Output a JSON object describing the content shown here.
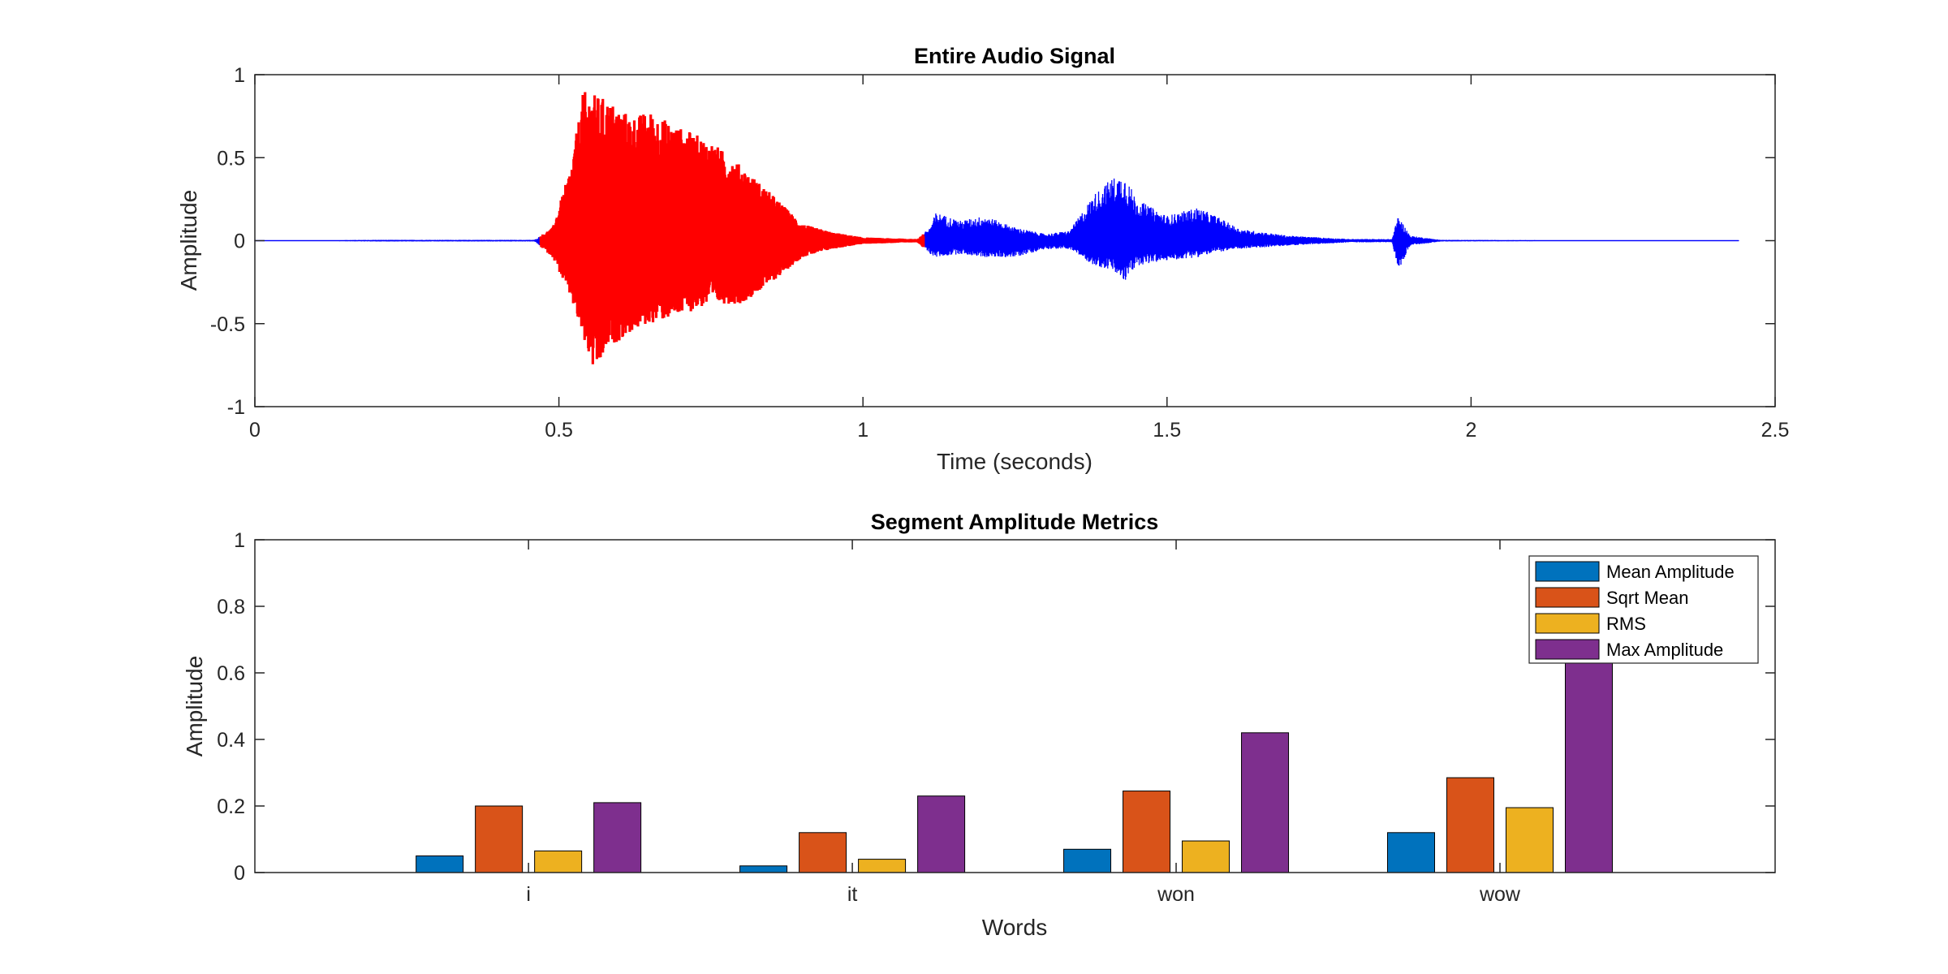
{
  "chart_data": [
    {
      "type": "line",
      "title": "Entire Audio Signal",
      "xlabel": "Time (seconds)",
      "ylabel": "Amplitude",
      "xlim": [
        0,
        2.5
      ],
      "ylim": [
        -1,
        1
      ],
      "xticks": [
        "0",
        "0.5",
        "1",
        "1.5",
        "2",
        "2.5"
      ],
      "yticks": [
        "-1",
        "-0.5",
        "0",
        "0.5",
        "1"
      ],
      "grid": false,
      "highlight_color": "#ff0000",
      "signal_color": "#0000ff",
      "signal_end": 2.44,
      "highlight_segment": [
        0.47,
        1.1
      ],
      "envelope": [
        {
          "t": 0.0,
          "max": 0.0,
          "min": 0.0
        },
        {
          "t": 0.2,
          "max": 0.005,
          "min": -0.005
        },
        {
          "t": 0.46,
          "max": 0.005,
          "min": -0.005
        },
        {
          "t": 0.49,
          "max": 0.08,
          "min": -0.1
        },
        {
          "t": 0.52,
          "max": 0.45,
          "min": -0.35
        },
        {
          "t": 0.54,
          "max": 0.9,
          "min": -0.6
        },
        {
          "t": 0.56,
          "max": 0.88,
          "min": -0.82
        },
        {
          "t": 0.58,
          "max": 0.85,
          "min": -0.65
        },
        {
          "t": 0.62,
          "max": 0.75,
          "min": -0.55
        },
        {
          "t": 0.65,
          "max": 0.78,
          "min": -0.5
        },
        {
          "t": 0.7,
          "max": 0.68,
          "min": -0.45
        },
        {
          "t": 0.75,
          "max": 0.6,
          "min": -0.38
        },
        {
          "t": 0.8,
          "max": 0.45,
          "min": -0.38
        },
        {
          "t": 0.85,
          "max": 0.28,
          "min": -0.25
        },
        {
          "t": 0.9,
          "max": 0.1,
          "min": -0.1
        },
        {
          "t": 0.95,
          "max": 0.05,
          "min": -0.05
        },
        {
          "t": 1.0,
          "max": 0.02,
          "min": -0.02
        },
        {
          "t": 1.09,
          "max": 0.01,
          "min": -0.01
        },
        {
          "t": 1.11,
          "max": 0.08,
          "min": -0.08
        },
        {
          "t": 1.12,
          "max": 0.17,
          "min": -0.1
        },
        {
          "t": 1.16,
          "max": 0.12,
          "min": -0.08
        },
        {
          "t": 1.2,
          "max": 0.15,
          "min": -0.1
        },
        {
          "t": 1.25,
          "max": 0.08,
          "min": -0.1
        },
        {
          "t": 1.3,
          "max": 0.04,
          "min": -0.05
        },
        {
          "t": 1.34,
          "max": 0.06,
          "min": -0.05
        },
        {
          "t": 1.38,
          "max": 0.28,
          "min": -0.15
        },
        {
          "t": 1.41,
          "max": 0.38,
          "min": -0.18
        },
        {
          "t": 1.43,
          "max": 0.4,
          "min": -0.25
        },
        {
          "t": 1.45,
          "max": 0.25,
          "min": -0.15
        },
        {
          "t": 1.5,
          "max": 0.15,
          "min": -0.12
        },
        {
          "t": 1.55,
          "max": 0.2,
          "min": -0.1
        },
        {
          "t": 1.58,
          "max": 0.15,
          "min": -0.07
        },
        {
          "t": 1.62,
          "max": 0.07,
          "min": -0.05
        },
        {
          "t": 1.7,
          "max": 0.03,
          "min": -0.03
        },
        {
          "t": 1.8,
          "max": 0.01,
          "min": -0.01
        },
        {
          "t": 1.87,
          "max": 0.01,
          "min": -0.01
        },
        {
          "t": 1.88,
          "max": 0.15,
          "min": -0.18
        },
        {
          "t": 1.9,
          "max": 0.03,
          "min": -0.03
        },
        {
          "t": 1.95,
          "max": 0.005,
          "min": -0.005
        },
        {
          "t": 2.44,
          "max": 0.0,
          "min": 0.0
        }
      ]
    },
    {
      "type": "bar",
      "title": "Segment Amplitude Metrics",
      "xlabel": "Words",
      "ylabel": "Amplitude",
      "ylim": [
        0,
        1
      ],
      "yticks": [
        "0",
        "0.2",
        "0.4",
        "0.6",
        "0.8",
        "1"
      ],
      "categories": [
        "i",
        "it",
        "won",
        "wow"
      ],
      "legend_position": "top-right",
      "series": [
        {
          "name": "Mean Amplitude",
          "color": "#0072BD",
          "values": [
            0.05,
            0.02,
            0.07,
            0.12
          ]
        },
        {
          "name": "Sqrt Mean",
          "color": "#D95319",
          "values": [
            0.2,
            0.12,
            0.245,
            0.285
          ]
        },
        {
          "name": "RMS",
          "color": "#EDB120",
          "values": [
            0.065,
            0.04,
            0.095,
            0.195
          ]
        },
        {
          "name": "Max Amplitude",
          "color": "#7E2F8E",
          "values": [
            0.21,
            0.23,
            0.42,
            0.9
          ]
        }
      ]
    }
  ]
}
